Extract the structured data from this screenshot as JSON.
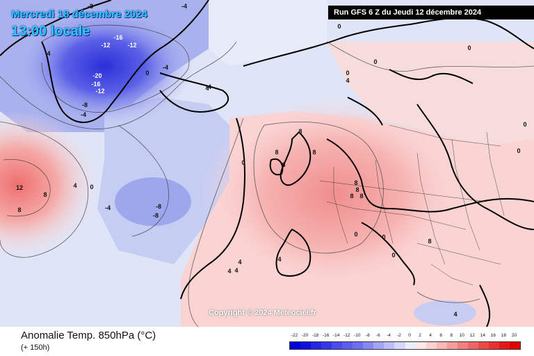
{
  "header": {
    "date_line": "Mercredi 18 décembre 2024",
    "time_line": "13:00 locale",
    "run_info": "Run GFS 6 Z du Jeudi 12 décembre 2024"
  },
  "footer": {
    "title": "Anomalie Temp. 850hPa (°C)",
    "subtitle": "(+ 150h)",
    "copyright": "Copyright © 2024 Meteociel.fr"
  },
  "colors": {
    "sea_background": "#dbe1f5",
    "warm_anomaly": "#f2a6a3",
    "cold_anomaly": "#6a74ea",
    "coastline": "#000000",
    "banner": "#000000"
  },
  "legend": {
    "labels": [
      "-22",
      "-20",
      "-18",
      "-16",
      "-14",
      "-12",
      "-10",
      "-8",
      "-6",
      "-4",
      "-2",
      "0",
      "2",
      "4",
      "6",
      "8",
      "10",
      "12",
      "14",
      "16",
      "18",
      "20"
    ],
    "colors": [
      "#0000d8",
      "#1010e0",
      "#2525e6",
      "#3535ec",
      "#4a4aee",
      "#5c5cf0",
      "#6e6ef2",
      "#8686f4",
      "#a4a4f6",
      "#bdbef9",
      "#d6d8fb",
      "#eceefd",
      "#fde6e6",
      "#fbd0d0",
      "#f8b8b8",
      "#f59c9c",
      "#f28080",
      "#ef6464",
      "#ec4848",
      "#e83030",
      "#e41818",
      "#e00000"
    ]
  },
  "map_labels": [
    {
      "text": "-8"
    },
    {
      "text": "-4"
    },
    {
      "text": "-16"
    },
    {
      "text": "-12"
    },
    {
      "text": "-12"
    },
    {
      "text": "-20"
    },
    {
      "text": "-16"
    },
    {
      "text": "-12"
    },
    {
      "text": "-8"
    },
    {
      "text": "-4"
    },
    {
      "text": "-4"
    },
    {
      "text": "0"
    },
    {
      "text": "-4"
    },
    {
      "text": "0"
    },
    {
      "text": "4"
    },
    {
      "text": "0"
    },
    {
      "text": "4"
    },
    {
      "text": "-8"
    },
    {
      "text": "-8"
    },
    {
      "text": "-4"
    },
    {
      "text": "12"
    },
    {
      "text": "8"
    },
    {
      "text": "8"
    },
    {
      "text": "4"
    },
    {
      "text": "0"
    },
    {
      "text": "8"
    },
    {
      "text": "8"
    },
    {
      "text": "8"
    },
    {
      "text": "8"
    },
    {
      "text": "8"
    },
    {
      "text": "8"
    },
    {
      "text": "8"
    },
    {
      "text": "8"
    },
    {
      "text": "0"
    },
    {
      "text": "0"
    },
    {
      "text": "4"
    },
    {
      "text": "4"
    },
    {
      "text": "4"
    },
    {
      "text": "4"
    },
    {
      "text": "8"
    },
    {
      "text": "0"
    },
    {
      "text": "0"
    },
    {
      "text": "0"
    },
    {
      "text": "0"
    },
    {
      "text": "0"
    },
    {
      "text": "4"
    },
    {
      "text": "4"
    },
    {
      "text": "0"
    }
  ]
}
